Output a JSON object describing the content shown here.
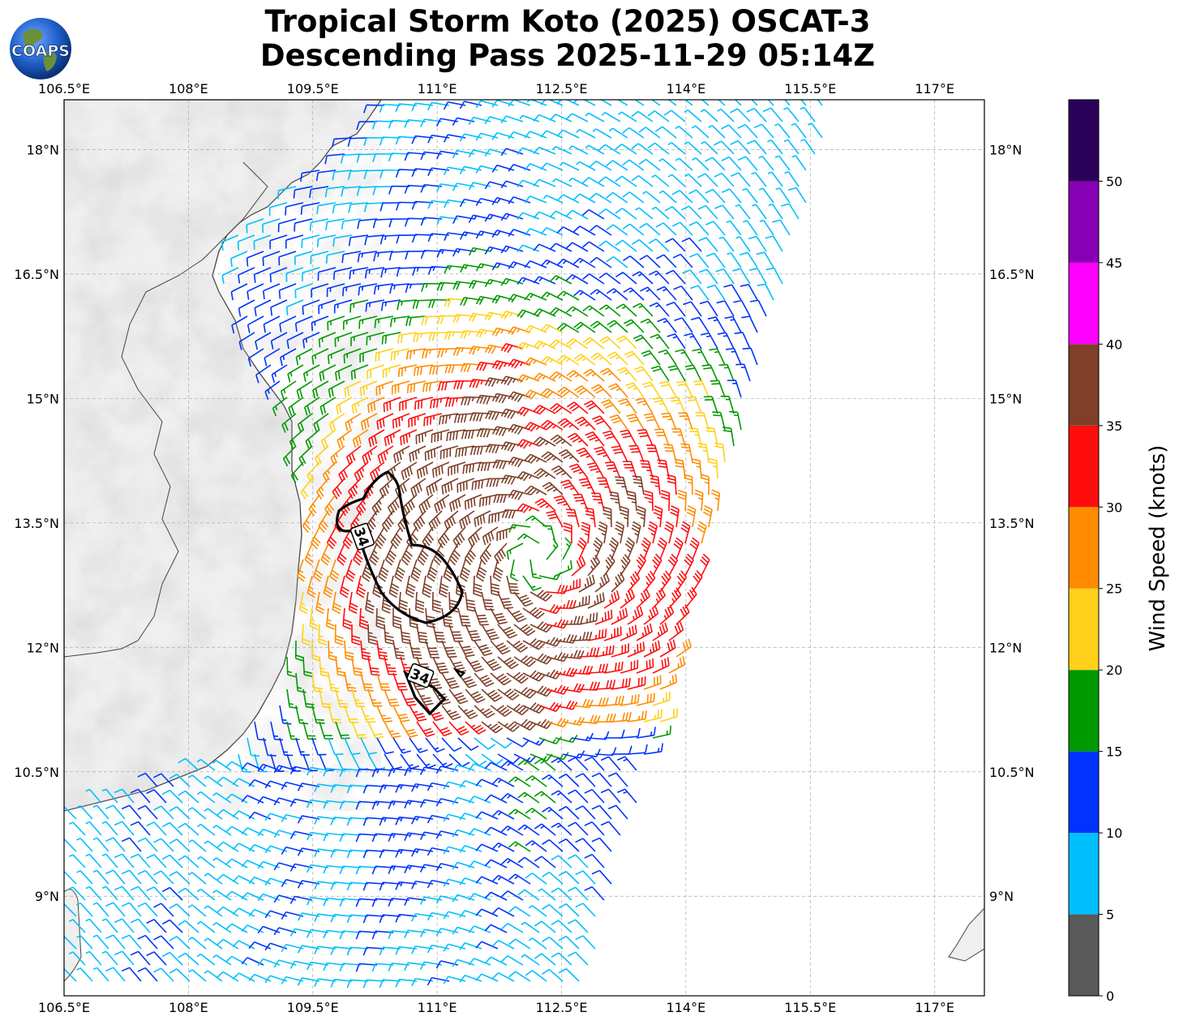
{
  "title": {
    "line1": "Tropical Storm Koto (2025) OSCAT-3",
    "line2": "Descending Pass 2025-11-29 05:14Z"
  },
  "logo": {
    "text": "COAPS"
  },
  "map": {
    "lon_range": [
      106.5,
      117.6
    ],
    "lat_range": [
      7.8,
      18.6
    ],
    "lon_ticks": [
      "106.5°E",
      "108°E",
      "109.5°E",
      "111°E",
      "112.5°E",
      "114°E",
      "115.5°E",
      "117°E"
    ],
    "lat_ticks": [
      "18°N",
      "16.5°N",
      "15°N",
      "13.5°N",
      "12°N",
      "10.5°N",
      "9°N"
    ],
    "contour_labels": [
      "34",
      "34"
    ],
    "storm_center": {
      "lon": 112.2,
      "lat": 13.1
    }
  },
  "colorbar": {
    "label": "Wind Speed (knots)",
    "ticks": [
      "0",
      "5",
      "10",
      "15",
      "20",
      "25",
      "30",
      "35",
      "40",
      "45",
      "50"
    ],
    "bins": [
      {
        "from": 0,
        "to": 5,
        "color": "#595959"
      },
      {
        "from": 5,
        "to": 10,
        "color": "#00bfff"
      },
      {
        "from": 10,
        "to": 15,
        "color": "#0033ff"
      },
      {
        "from": 15,
        "to": 20,
        "color": "#009900"
      },
      {
        "from": 20,
        "to": 25,
        "color": "#ffd11a"
      },
      {
        "from": 25,
        "to": 30,
        "color": "#ff8c00"
      },
      {
        "from": 30,
        "to": 35,
        "color": "#ff0d0d"
      },
      {
        "from": 35,
        "to": 40,
        "color": "#7f3f29"
      },
      {
        "from": 40,
        "to": 45,
        "color": "#ff00ff"
      },
      {
        "from": 45,
        "to": 50,
        "color": "#8800b3"
      },
      {
        "from": 50,
        "to": 55,
        "color": "#2b0059"
      }
    ]
  }
}
